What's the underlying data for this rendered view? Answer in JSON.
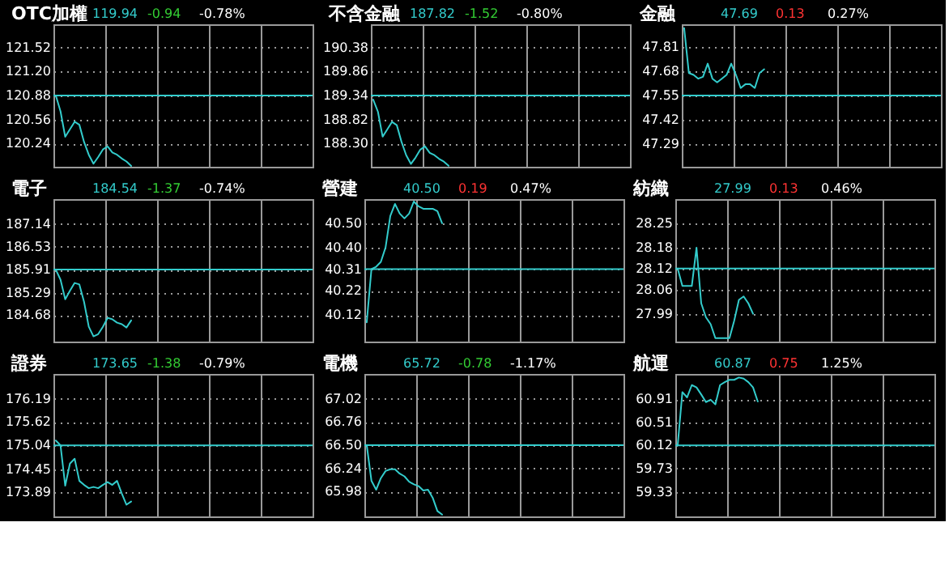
{
  "chart_data": [
    {
      "type": "line",
      "title": "OTC加權",
      "annotations": [
        "119.94",
        "-0.94",
        "-0.78%"
      ],
      "categories": [
        null,
        null,
        null,
        null,
        null,
        null,
        null,
        null,
        null,
        null,
        null,
        null,
        null,
        null,
        null,
        null,
        null,
        null,
        null,
        null,
        null,
        null,
        null,
        null,
        null,
        null,
        null,
        null,
        null,
        null,
        null,
        null,
        null,
        null,
        null,
        null,
        null,
        null,
        null,
        null,
        null,
        null,
        null,
        null,
        null,
        null,
        null,
        null,
        null,
        null,
        null,
        null,
        null,
        null,
        null
      ],
      "series": [
        {
          "color": "#33cccc",
          "values": [
            120.88,
            120.67,
            120.33,
            120.43,
            120.53,
            120.49,
            120.26,
            120.09,
            119.97,
            120.06,
            120.16,
            120.2,
            120.12,
            120.09,
            120.04,
            120.0,
            119.94,
            null,
            null,
            null,
            null,
            null,
            null,
            null,
            null,
            null,
            null,
            null,
            null,
            null,
            null,
            null,
            null,
            null,
            null,
            null,
            null,
            null,
            null,
            null,
            null,
            null,
            null,
            null,
            null,
            null,
            null,
            null,
            null,
            null,
            null,
            null,
            null,
            null,
            null
          ]
        }
      ],
      "ylim": [
        119.93,
        121.83
      ],
      "yticks": [
        120.24,
        120.56,
        120.88,
        {
          "value": 121.2,
          "label": "121.20"
        },
        121.52
      ],
      "ref_lines": [
        {
          "axis": "y",
          "value": 120.88,
          "color": "#33cccc"
        }
      ],
      "grid": true,
      "tick_labels": "y"
    },
    {
      "type": "line",
      "title": "不含金融",
      "annotations": [
        "187.82",
        "-1.52",
        "-0.80%"
      ],
      "categories": [
        null,
        null,
        null,
        null,
        null,
        null,
        null,
        null,
        null,
        null,
        null,
        null,
        null,
        null,
        null,
        null,
        null,
        null,
        null,
        null,
        null,
        null,
        null,
        null,
        null,
        null,
        null,
        null,
        null,
        null,
        null,
        null,
        null,
        null,
        null,
        null,
        null,
        null,
        null,
        null,
        null,
        null,
        null,
        null,
        null,
        null,
        null,
        null,
        null,
        null,
        null,
        null,
        null,
        null,
        null
      ],
      "series": [
        {
          "color": "#33cccc",
          "values": [
            189.25,
            188.99,
            188.45,
            188.61,
            188.77,
            188.7,
            188.34,
            188.05,
            187.86,
            188.0,
            188.17,
            188.24,
            188.1,
            188.05,
            187.97,
            187.91,
            187.82,
            null,
            null,
            null,
            null,
            null,
            null,
            null,
            null,
            null,
            null,
            null,
            null,
            null,
            null,
            null,
            null,
            null,
            null,
            null,
            null,
            null,
            null,
            null,
            null,
            null,
            null,
            null,
            null,
            null,
            null,
            null,
            null,
            null,
            null,
            null,
            null,
            null,
            null
          ]
        }
      ],
      "ylim": [
        187.8,
        190.88
      ],
      "yticks": [
        {
          "value": 188.3,
          "label": "188.30"
        },
        188.82,
        189.34,
        189.86,
        190.38
      ],
      "ref_lines": [
        {
          "axis": "y",
          "value": 189.34,
          "color": "#33cccc"
        }
      ],
      "grid": true,
      "tick_labels": "y"
    },
    {
      "type": "line",
      "title": "金融",
      "annotations": [
        "47.69",
        "0.13",
        "0.27%"
      ],
      "categories": [
        null,
        null,
        null,
        null,
        null,
        null,
        null,
        null,
        null,
        null,
        null,
        null,
        null,
        null,
        null,
        null,
        null,
        null,
        null,
        null,
        null,
        null,
        null,
        null,
        null,
        null,
        null,
        null,
        null,
        null,
        null,
        null,
        null,
        null,
        null,
        null,
        null,
        null,
        null,
        null,
        null,
        null,
        null,
        null,
        null,
        null,
        null,
        null,
        null,
        null,
        null,
        null,
        null,
        null,
        null
      ],
      "series": [
        {
          "color": "#33cccc",
          "values": [
            47.91,
            47.67,
            47.66,
            47.64,
            47.65,
            47.72,
            47.64,
            47.62,
            47.64,
            47.66,
            47.72,
            47.66,
            47.59,
            47.61,
            47.61,
            47.59,
            47.67,
            47.69,
            null,
            null,
            null,
            null,
            null,
            null,
            null,
            null,
            null,
            null,
            null,
            null,
            null,
            null,
            null,
            null,
            null,
            null,
            null,
            null,
            null,
            null,
            null,
            null,
            null,
            null,
            null,
            null,
            null,
            null,
            null,
            null,
            null,
            null,
            null,
            null,
            null
          ]
        }
      ],
      "ylim": [
        47.17,
        47.93
      ],
      "yticks": [
        47.29,
        47.42,
        47.55,
        47.68,
        47.81
      ],
      "ref_lines": [
        {
          "axis": "y",
          "value": 47.55,
          "color": "#33cccc"
        }
      ],
      "grid": true,
      "tick_labels": "y"
    },
    {
      "type": "line",
      "title": "電子",
      "annotations": [
        "184.54",
        "-1.37",
        "-0.74%"
      ],
      "categories": [
        null,
        null,
        null,
        null,
        null,
        null,
        null,
        null,
        null,
        null,
        null,
        null,
        null,
        null,
        null,
        null,
        null,
        null,
        null,
        null,
        null,
        null,
        null,
        null,
        null,
        null,
        null,
        null,
        null,
        null,
        null,
        null,
        null,
        null,
        null,
        null,
        null,
        null,
        null,
        null,
        null,
        null,
        null,
        null,
        null,
        null,
        null,
        null,
        null,
        null,
        null,
        null,
        null,
        null,
        null
      ],
      "series": [
        {
          "color": "#33cccc",
          "values": [
            185.91,
            185.64,
            185.11,
            185.34,
            185.55,
            185.51,
            185.04,
            184.37,
            184.11,
            184.17,
            184.37,
            184.61,
            184.57,
            184.48,
            184.44,
            184.35,
            184.54,
            null,
            null,
            null,
            null,
            null,
            null,
            null,
            null,
            null,
            null,
            null,
            null,
            null,
            null,
            null,
            null,
            null,
            null,
            null,
            null,
            null,
            null,
            null,
            null,
            null,
            null,
            null,
            null,
            null,
            null,
            null,
            null,
            null,
            null,
            null,
            null,
            null,
            null
          ]
        }
      ],
      "ylim": [
        183.97,
        187.81
      ],
      "yticks": [
        184.68,
        185.29,
        185.91,
        186.53,
        187.14
      ],
      "ref_lines": [
        {
          "axis": "y",
          "value": 185.91,
          "color": "#33cccc"
        }
      ],
      "grid": true,
      "tick_labels": "y"
    },
    {
      "type": "line",
      "title": "營建",
      "annotations": [
        "40.50",
        "0.19",
        "0.47%"
      ],
      "categories": [
        null,
        null,
        null,
        null,
        null,
        null,
        null,
        null,
        null,
        null,
        null,
        null,
        null,
        null,
        null,
        null,
        null,
        null,
        null,
        null,
        null,
        null,
        null,
        null,
        null,
        null,
        null,
        null,
        null,
        null,
        null,
        null,
        null,
        null,
        null,
        null,
        null,
        null,
        null,
        null,
        null,
        null,
        null,
        null,
        null,
        null,
        null,
        null,
        null,
        null,
        null,
        null,
        null,
        null,
        null
      ],
      "series": [
        {
          "color": "#33cccc",
          "values": [
            40.09,
            40.31,
            40.32,
            40.34,
            40.4,
            40.53,
            40.58,
            40.54,
            40.52,
            40.54,
            40.59,
            40.57,
            40.56,
            40.56,
            40.56,
            40.55,
            40.5,
            null,
            null,
            null,
            null,
            null,
            null,
            null,
            null,
            null,
            null,
            null,
            null,
            null,
            null,
            null,
            null,
            null,
            null,
            null,
            null,
            null,
            null,
            null,
            null,
            null,
            null,
            null,
            null,
            null,
            null,
            null,
            null,
            null,
            null,
            null,
            null,
            null,
            null
          ]
        }
      ],
      "ylim": [
        40.01,
        40.6
      ],
      "yticks": [
        40.12,
        40.22,
        40.31,
        {
          "value": 40.4,
          "label": "40.40"
        },
        {
          "value": 40.5,
          "label": "40.50"
        }
      ],
      "ref_lines": [
        {
          "axis": "y",
          "value": 40.31,
          "color": "#33cccc"
        }
      ],
      "grid": true,
      "tick_labels": "y"
    },
    {
      "type": "line",
      "title": "紡織",
      "annotations": [
        "27.99",
        "0.13",
        "0.46%"
      ],
      "categories": [
        null,
        null,
        null,
        null,
        null,
        null,
        null,
        null,
        null,
        null,
        null,
        null,
        null,
        null,
        null,
        null,
        null,
        null,
        null,
        null,
        null,
        null,
        null,
        null,
        null,
        null,
        null,
        null,
        null,
        null,
        null,
        null,
        null,
        null,
        null,
        null,
        null,
        null,
        null,
        null,
        null,
        null,
        null,
        null,
        null,
        null,
        null,
        null,
        null,
        null,
        null,
        null,
        null,
        null,
        null
      ],
      "series": [
        {
          "color": "#33cccc",
          "values": [
            28.12,
            28.07,
            28.07,
            28.07,
            28.18,
            28.02,
            27.98,
            27.96,
            27.92,
            27.92,
            27.92,
            27.92,
            27.97,
            28.03,
            28.04,
            28.02,
            27.99,
            null,
            null,
            null,
            null,
            null,
            null,
            null,
            null,
            null,
            null,
            null,
            null,
            null,
            null,
            null,
            null,
            null,
            null,
            null,
            null,
            null,
            null,
            null,
            null,
            null,
            null,
            null,
            null,
            null,
            null,
            null,
            null,
            null,
            null,
            null,
            null,
            null,
            null
          ]
        }
      ],
      "ylim": [
        27.91,
        28.32
      ],
      "yticks": [
        27.99,
        28.06,
        28.12,
        28.18,
        28.25
      ],
      "ref_lines": [
        {
          "axis": "y",
          "value": 28.12,
          "color": "#33cccc"
        }
      ],
      "grid": true,
      "tick_labels": "y"
    },
    {
      "type": "line",
      "title": "證券",
      "annotations": [
        "173.65",
        "-1.38",
        "-0.79%"
      ],
      "categories": [
        null,
        null,
        null,
        null,
        null,
        null,
        null,
        null,
        null,
        null,
        null,
        null,
        null,
        null,
        null,
        null,
        null,
        null,
        null,
        null,
        null,
        null,
        null,
        null,
        null,
        null,
        null,
        null,
        null,
        null,
        null,
        null,
        null,
        null,
        null,
        null,
        null,
        null,
        null,
        null,
        null,
        null,
        null,
        null,
        null,
        null,
        null,
        null,
        null,
        null,
        null,
        null,
        null,
        null,
        null
      ],
      "series": [
        {
          "color": "#33cccc",
          "values": [
            175.16,
            175.04,
            174.04,
            174.59,
            174.71,
            174.16,
            174.06,
            173.98,
            174.01,
            173.98,
            174.06,
            174.13,
            174.06,
            174.16,
            173.85,
            173.57,
            173.65,
            null,
            null,
            null,
            null,
            null,
            null,
            null,
            null,
            null,
            null,
            null,
            null,
            null,
            null,
            null,
            null,
            null,
            null,
            null,
            null,
            null,
            null,
            null,
            null,
            null,
            null,
            null,
            null,
            null,
            null,
            null,
            null,
            null,
            null,
            null,
            null,
            null,
            null
          ]
        }
      ],
      "ylim": [
        173.28,
        176.81
      ],
      "yticks": [
        173.89,
        174.45,
        175.04,
        175.62,
        176.19
      ],
      "ref_lines": [
        {
          "axis": "y",
          "value": 175.04,
          "color": "#33cccc"
        }
      ],
      "grid": true,
      "tick_labels": "y"
    },
    {
      "type": "line",
      "title": "電機",
      "annotations": [
        "65.72",
        "-0.78",
        "-1.17%"
      ],
      "categories": [
        null,
        null,
        null,
        null,
        null,
        null,
        null,
        null,
        null,
        null,
        null,
        null,
        null,
        null,
        null,
        null,
        null,
        null,
        null,
        null,
        null,
        null,
        null,
        null,
        null,
        null,
        null,
        null,
        null,
        null,
        null,
        null,
        null,
        null,
        null,
        null,
        null,
        null,
        null,
        null,
        null,
        null,
        null,
        null,
        null,
        null,
        null,
        null,
        null,
        null,
        null,
        null,
        null,
        null,
        null
      ],
      "series": [
        {
          "color": "#33cccc",
          "values": [
            66.5,
            66.1,
            66.0,
            66.13,
            66.21,
            66.23,
            66.23,
            66.18,
            66.15,
            66.09,
            66.06,
            66.04,
            65.99,
            66.0,
            65.91,
            65.76,
            65.72,
            null,
            null,
            null,
            null,
            null,
            null,
            null,
            null,
            null,
            null,
            null,
            null,
            null,
            null,
            null,
            null,
            null,
            null,
            null,
            null,
            null,
            null,
            null,
            null,
            null,
            null,
            null,
            null,
            null,
            null,
            null,
            null,
            null,
            null,
            null,
            null,
            null,
            null
          ]
        }
      ],
      "ylim": [
        65.7,
        67.3
      ],
      "yticks": [
        65.98,
        66.24,
        {
          "value": 66.5,
          "label": "66.50"
        },
        66.76,
        67.02
      ],
      "ref_lines": [
        {
          "axis": "y",
          "value": 66.5,
          "color": "#33cccc"
        }
      ],
      "grid": true,
      "tick_labels": "y"
    },
    {
      "type": "line",
      "title": "航運",
      "annotations": [
        "60.87",
        "0.75",
        "1.25%"
      ],
      "categories": [
        null,
        null,
        null,
        null,
        null,
        null,
        null,
        null,
        null,
        null,
        null,
        null,
        null,
        null,
        null,
        null,
        null,
        null,
        null,
        null,
        null,
        null,
        null,
        null,
        null,
        null,
        null,
        null,
        null,
        null,
        null,
        null,
        null,
        null,
        null,
        null,
        null,
        null,
        null,
        null,
        null,
        null,
        null,
        null,
        null,
        null,
        null,
        null,
        null,
        null,
        null,
        null,
        null,
        null,
        null
      ],
      "series": [
        {
          "color": "#33cccc",
          "values": [
            60.12,
            61.03,
            60.94,
            61.15,
            61.11,
            60.99,
            60.86,
            60.9,
            60.82,
            61.15,
            61.2,
            61.24,
            61.24,
            61.28,
            61.26,
            61.2,
            61.11,
            60.87,
            null,
            null,
            null,
            null,
            null,
            null,
            null,
            null,
            null,
            null,
            null,
            null,
            null,
            null,
            null,
            null,
            null,
            null,
            null,
            null,
            null,
            null,
            null,
            null,
            null,
            null,
            null,
            null,
            null,
            null,
            null,
            null,
            null,
            null,
            null,
            null,
            null
          ]
        }
      ],
      "ylim": [
        58.91,
        61.34
      ],
      "yticks": [
        59.33,
        59.73,
        60.12,
        60.51,
        60.91
      ],
      "ref_lines": [
        {
          "axis": "y",
          "value": 60.12,
          "color": "#33cccc"
        }
      ],
      "grid": true,
      "tick_labels": "y"
    }
  ]
}
